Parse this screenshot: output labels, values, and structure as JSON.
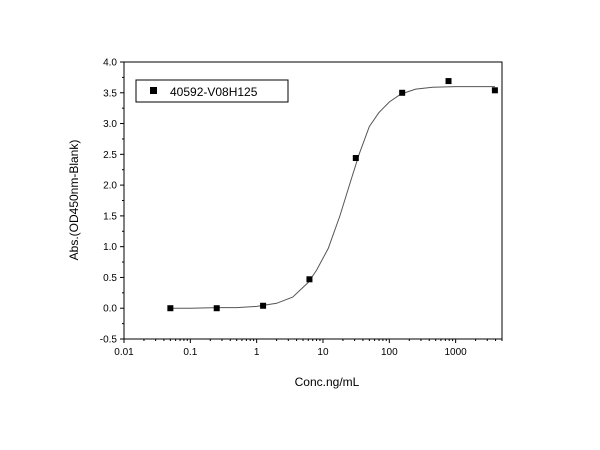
{
  "chart_data": {
    "type": "scatter",
    "title": "",
    "xlabel": "Conc.ng/mL",
    "ylabel": "Abs.(OD450nm-Blank)",
    "x_scale": "log",
    "xlim": [
      0.01,
      5000
    ],
    "ylim": [
      -0.5,
      4.0
    ],
    "x_ticks": [
      0.01,
      0.1,
      1,
      10,
      100,
      1000
    ],
    "x_tick_labels": [
      "0.01",
      "0.1",
      "1",
      "10",
      "100",
      "1000"
    ],
    "y_ticks": [
      -0.5,
      0.0,
      0.5,
      1.0,
      1.5,
      2.0,
      2.5,
      3.0,
      3.5,
      4.0
    ],
    "y_tick_labels": [
      "-0.5",
      "0.0",
      "0.5",
      "1.0",
      "1.5",
      "2.0",
      "2.5",
      "3.0",
      "3.5",
      "4.0"
    ],
    "legend_position": "top-left",
    "grid": false,
    "series": [
      {
        "name": "40592-V08H125",
        "marker": "square",
        "color": "#000000",
        "points": [
          {
            "x": 0.05,
            "y": 0.0
          },
          {
            "x": 0.25,
            "y": 0.0
          },
          {
            "x": 1.25,
            "y": 0.04
          },
          {
            "x": 6.25,
            "y": 0.47
          },
          {
            "x": 31.25,
            "y": 2.44
          },
          {
            "x": 156.25,
            "y": 3.5
          },
          {
            "x": 781.25,
            "y": 3.69
          },
          {
            "x": 3906.25,
            "y": 3.54
          }
        ]
      }
    ],
    "fit_curve": [
      {
        "x": 0.05,
        "y": 0.0
      },
      {
        "x": 0.1,
        "y": 0.0
      },
      {
        "x": 0.25,
        "y": 0.01
      },
      {
        "x": 0.5,
        "y": 0.01
      },
      {
        "x": 1.0,
        "y": 0.03
      },
      {
        "x": 2.0,
        "y": 0.08
      },
      {
        "x": 3.5,
        "y": 0.18
      },
      {
        "x": 6.0,
        "y": 0.42
      },
      {
        "x": 8.0,
        "y": 0.62
      },
      {
        "x": 12.0,
        "y": 0.97
      },
      {
        "x": 18.0,
        "y": 1.5
      },
      {
        "x": 25.0,
        "y": 2.0
      },
      {
        "x": 35.0,
        "y": 2.5
      },
      {
        "x": 50.0,
        "y": 2.95
      },
      {
        "x": 70.0,
        "y": 3.18
      },
      {
        "x": 100.0,
        "y": 3.35
      },
      {
        "x": 150.0,
        "y": 3.48
      },
      {
        "x": 250.0,
        "y": 3.56
      },
      {
        "x": 450.0,
        "y": 3.59
      },
      {
        "x": 1000.0,
        "y": 3.6
      },
      {
        "x": 3906.25,
        "y": 3.6
      }
    ]
  }
}
